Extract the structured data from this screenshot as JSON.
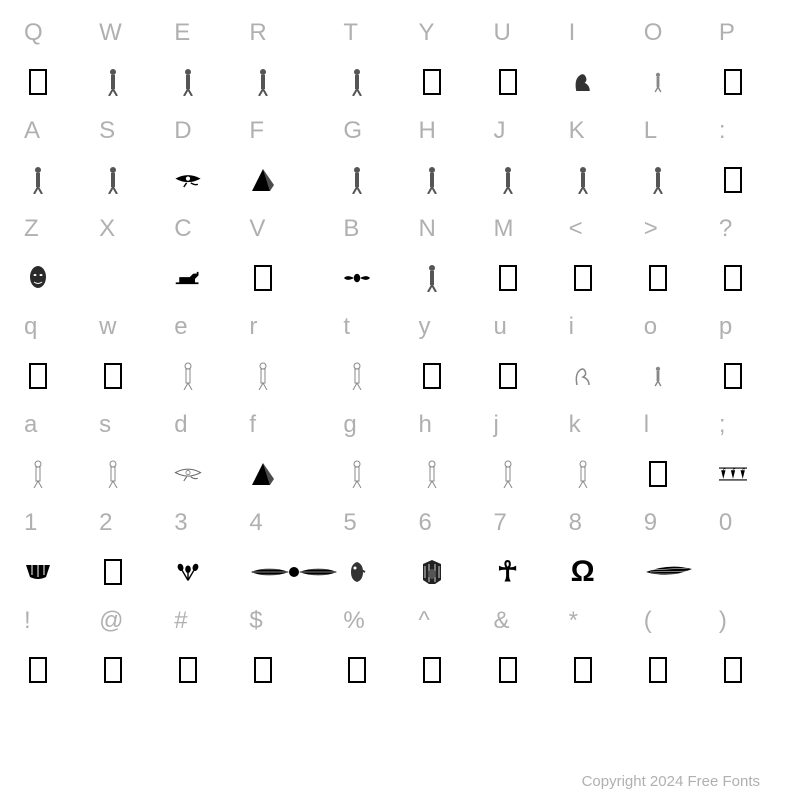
{
  "footer": "Copyright 2024 Free Fonts",
  "rows": [
    {
      "type": "keys",
      "labels": [
        "Q",
        "W",
        "E",
        "R",
        "T",
        "Y",
        "U",
        "I",
        "O",
        "P"
      ]
    },
    {
      "type": "glyphs",
      "glyphs": [
        "box",
        "person",
        "person",
        "person",
        "person",
        "box",
        "box",
        "cobra",
        "person-small",
        "box"
      ]
    },
    {
      "type": "keys",
      "labels": [
        "A",
        "S",
        "D",
        "F",
        "G",
        "H",
        "J",
        "K",
        "L",
        ":"
      ]
    },
    {
      "type": "glyphs",
      "glyphs": [
        "person",
        "person",
        "eye-dark",
        "triangle-dark",
        "person",
        "person",
        "person",
        "person",
        "person",
        "box"
      ]
    },
    {
      "type": "keys",
      "labels": [
        "Z",
        "X",
        "C",
        "V",
        "B",
        "N",
        "M",
        "<",
        ">",
        "?"
      ]
    },
    {
      "type": "glyphs",
      "glyphs": [
        "face",
        "blank",
        "dog",
        "box",
        "scarab-wings",
        "person",
        "box",
        "box",
        "box",
        "box"
      ]
    },
    {
      "type": "keys",
      "labels": [
        "q",
        "w",
        "e",
        "r",
        "t",
        "y",
        "u",
        "i",
        "o",
        "p"
      ]
    },
    {
      "type": "glyphs",
      "glyphs": [
        "box",
        "box",
        "person-outline",
        "person-outline",
        "person-outline",
        "box",
        "box",
        "cobra-outline",
        "person-small",
        "box"
      ]
    },
    {
      "type": "keys",
      "labels": [
        "a",
        "s",
        "d",
        "f",
        "g",
        "h",
        "j",
        "k",
        "l",
        ";"
      ]
    },
    {
      "type": "glyphs",
      "glyphs": [
        "person-outline",
        "person-outline",
        "eye-outline",
        "triangle-dark",
        "person-outline",
        "person-outline",
        "person-outline",
        "person-outline",
        "box",
        "lotus-pattern"
      ]
    },
    {
      "type": "keys",
      "labels": [
        "1",
        "2",
        "3",
        "4",
        "5",
        "6",
        "7",
        "8",
        "9",
        "0"
      ]
    },
    {
      "type": "glyphs",
      "glyphs": [
        "vessel",
        "box",
        "flowers",
        "winged-disc",
        "falcon-head",
        "pharaoh-head",
        "ankh",
        "omega",
        "wing-right",
        "blank-wide"
      ]
    },
    {
      "type": "keys",
      "labels": [
        "!",
        "@",
        "#",
        "$",
        "%",
        "^",
        "&",
        "*",
        "(",
        ")"
      ]
    },
    {
      "type": "glyphs",
      "glyphs": [
        "box",
        "box",
        "box",
        "box",
        "box",
        "box",
        "box",
        "box",
        "box",
        "box"
      ]
    }
  ]
}
